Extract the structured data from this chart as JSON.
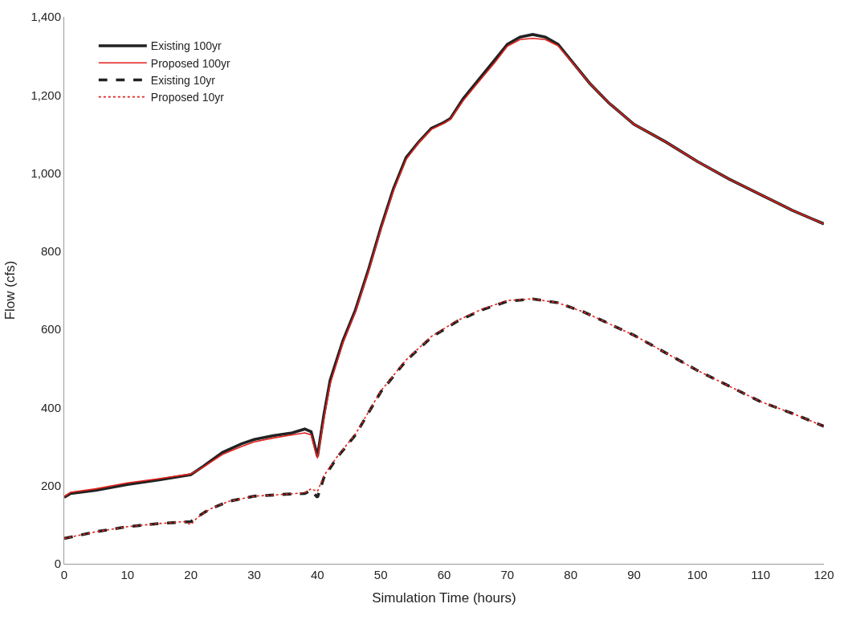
{
  "chart_data": {
    "type": "line",
    "xlabel": "Simulation Time (hours)",
    "ylabel": "Flow (cfs)",
    "xlim": [
      0,
      120
    ],
    "xticks": [
      0,
      10,
      20,
      30,
      40,
      50,
      60,
      70,
      80,
      90,
      100,
      110,
      120
    ],
    "ylim": [
      0,
      1400
    ],
    "yticks": [
      0,
      {
        "value": 200,
        "label": "200"
      },
      {
        "value": 400,
        "label": "400"
      },
      {
        "value": 600,
        "label": "600"
      },
      {
        "value": 800,
        "label": "800"
      },
      {
        "value": 1000,
        "label": "1,000"
      },
      {
        "value": 1200,
        "label": "1,200"
      },
      {
        "value": 1400,
        "label": "1,400"
      }
    ],
    "grid": false,
    "legend": "top left",
    "marker": "none",
    "series": [
      {
        "name": "Existing 100yr",
        "color": "#222222",
        "line_style": "solid",
        "x": [
          0,
          1,
          5,
          10,
          15,
          20,
          22,
          25,
          28,
          30,
          33,
          36,
          38,
          39,
          40,
          41,
          42,
          44,
          46,
          48,
          50,
          52,
          54,
          56,
          58,
          60,
          61,
          63,
          65,
          68,
          70,
          72,
          74,
          76,
          78,
          80,
          83,
          86,
          90,
          95,
          100,
          105,
          110,
          115,
          120
        ],
        "values": [
          170,
          180,
          188,
          203,
          215,
          228,
          250,
          285,
          307,
          318,
          328,
          335,
          345,
          338,
          275,
          380,
          470,
          570,
          650,
          750,
          860,
          960,
          1040,
          1080,
          1115,
          1130,
          1140,
          1190,
          1230,
          1290,
          1330,
          1348,
          1355,
          1348,
          1330,
          1290,
          1230,
          1180,
          1125,
          1080,
          1030,
          985,
          945,
          905,
          870
        ]
      },
      {
        "name": "Proposed 100yr",
        "color": "#e0201c",
        "line_style": "solid",
        "x": [
          0,
          1,
          5,
          10,
          15,
          20,
          22,
          25,
          28,
          30,
          33,
          36,
          38,
          39,
          40,
          41,
          42,
          44,
          46,
          48,
          50,
          52,
          54,
          56,
          58,
          60,
          61,
          63,
          65,
          68,
          70,
          72,
          74,
          76,
          78,
          80,
          83,
          86,
          90,
          95,
          100,
          105,
          110,
          115,
          120
        ],
        "values": [
          172,
          183,
          192,
          207,
          218,
          230,
          248,
          280,
          300,
          312,
          322,
          330,
          335,
          330,
          270,
          370,
          460,
          565,
          645,
          745,
          855,
          955,
          1035,
          1078,
          1112,
          1128,
          1138,
          1185,
          1225,
          1283,
          1325,
          1342,
          1345,
          1342,
          1326,
          1288,
          1230,
          1180,
          1125,
          1080,
          1030,
          985,
          945,
          905,
          870
        ]
      },
      {
        "name": "Existing 10yr",
        "color": "#222222",
        "line_style": "dashed",
        "x": [
          0,
          5,
          10,
          15,
          20,
          21,
          23,
          26,
          30,
          35,
          38,
          39,
          40,
          41,
          43,
          46,
          50,
          54,
          58,
          62,
          66,
          70,
          74,
          78,
          82,
          86,
          90,
          95,
          100,
          105,
          110,
          115,
          120
        ],
        "values": [
          65,
          82,
          95,
          103,
          108,
          120,
          140,
          160,
          173,
          178,
          180,
          188,
          170,
          220,
          270,
          330,
          440,
          520,
          580,
          620,
          650,
          672,
          678,
          668,
          645,
          615,
          585,
          540,
          495,
          455,
          415,
          385,
          352
        ]
      },
      {
        "name": "Proposed 10yr",
        "color": "#e0201c",
        "line_style": "dotted",
        "x": [
          0,
          5,
          10,
          15,
          19,
          20,
          21,
          23,
          26,
          30,
          35,
          38,
          39,
          40,
          41,
          43,
          46,
          50,
          54,
          58,
          62,
          66,
          70,
          74,
          78,
          82,
          86,
          90,
          95,
          100,
          105,
          110,
          115,
          120
        ],
        "values": [
          65,
          82,
          95,
          103,
          108,
          100,
          118,
          140,
          160,
          173,
          178,
          182,
          192,
          185,
          225,
          272,
          332,
          442,
          522,
          582,
          622,
          652,
          674,
          678,
          668,
          645,
          615,
          585,
          540,
          495,
          455,
          415,
          385,
          352
        ]
      }
    ]
  }
}
